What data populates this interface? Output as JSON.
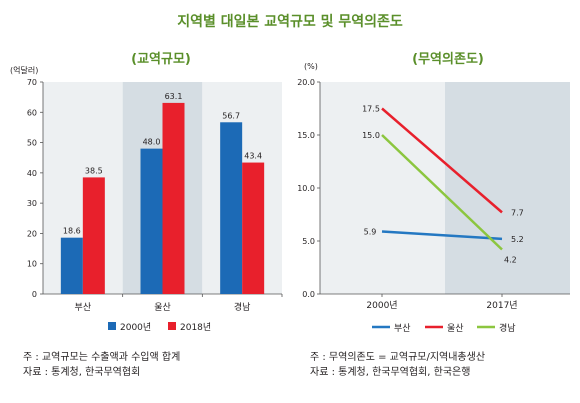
{
  "title": "지역별 대일본 교역규모 및 무역의존도",
  "colors": {
    "title": "#5a8f2a",
    "bar_2000": "#1c6ab6",
    "bar_2018": "#e8202c",
    "line_busan": "#2478c2",
    "line_ulsan": "#e8202c",
    "line_gyeongnam": "#8cc63f",
    "plot_bg_light": "#edf0f2",
    "plot_bg_dark": "#d5dde3"
  },
  "chart_data": [
    {
      "type": "bar",
      "title": "(교역규모)",
      "ylabel": "(억달러)",
      "categories": [
        "부산",
        "울산",
        "경남"
      ],
      "series": [
        {
          "name": "2000년",
          "values": [
            18.6,
            48.0,
            56.7
          ],
          "labels": [
            "18.6",
            "48.0",
            "56.7"
          ]
        },
        {
          "name": "2018년",
          "values": [
            38.5,
            63.1,
            43.4
          ],
          "labels": [
            "38.5",
            "63.1",
            "43.4"
          ]
        }
      ],
      "ylim": [
        0,
        70
      ],
      "yticks": [
        "0",
        "10",
        "20",
        "30",
        "40",
        "50",
        "60",
        "70"
      ],
      "grid": false,
      "legend": "bottom"
    },
    {
      "type": "line",
      "title": "(무역의존도)",
      "ylabel": "(%)",
      "x": [
        "2000년",
        "2017년"
      ],
      "series": [
        {
          "name": "부산",
          "values": [
            5.9,
            5.2
          ],
          "labels": [
            "5.9",
            "5.2"
          ]
        },
        {
          "name": "울산",
          "values": [
            17.5,
            7.7
          ],
          "labels": [
            "17.5",
            "7.7"
          ]
        },
        {
          "name": "경남",
          "values": [
            15.0,
            4.2
          ],
          "labels": [
            "15.0",
            "4.2"
          ]
        }
      ],
      "ylim": [
        0,
        20
      ],
      "yticks": [
        "0.0",
        "5.0",
        "10.0",
        "15.0",
        "20.0"
      ],
      "grid": false,
      "legend": "bottom"
    }
  ],
  "notes_left": [
    "주 : 교역규모는 수출액과 수입액 합계",
    "자료 : 통계청, 한국무역협회"
  ],
  "notes_right": [
    "주 : 무역의존도 = 교역규모/지역내총생산",
    "자료 : 통계청, 한국무역협회, 한국은행"
  ]
}
